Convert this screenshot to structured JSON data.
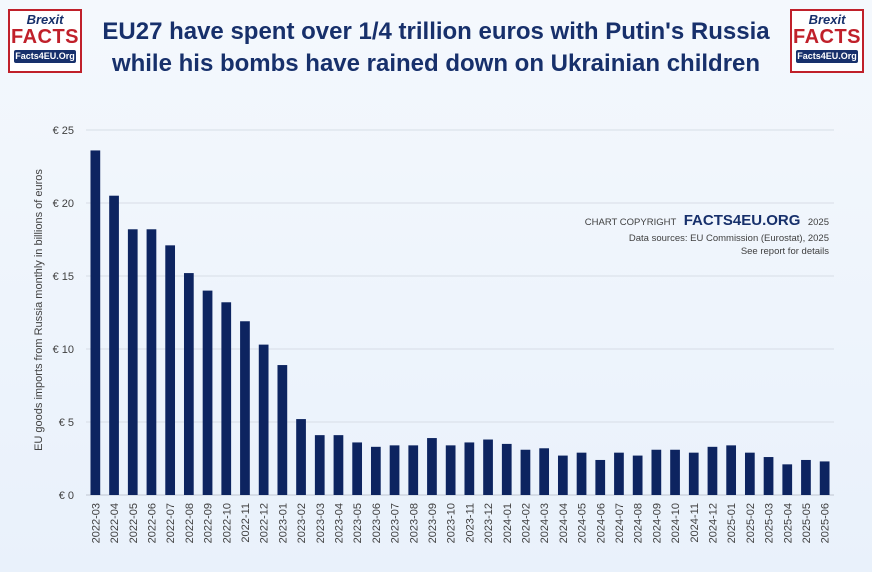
{
  "logo": {
    "line1": "Brexit",
    "line2": "FACTS",
    "line3": "Facts4EU.Org"
  },
  "title_line1": "EU27 have spent over 1/4 trillion euros with Putin's Russia",
  "title_line2": "while his bombs have rained down on Ukrainian children",
  "copyright": {
    "prefix": "CHART COPYRIGHT",
    "brand": "FACTS4EU.ORG",
    "year": "2025"
  },
  "source_line1": "Data sources: EU Commission (Eurostat), 2025",
  "source_line2": "See report for details",
  "colors": {
    "bar": "#0d2460",
    "grid": "#d7dde6",
    "text": "#404040",
    "title": "#17306b"
  },
  "chart_data": {
    "type": "bar",
    "ylabel": "EU goods imports from Russia monthly in billions of euros",
    "ylim": [
      0,
      25
    ],
    "yticks": [
      0,
      5,
      10,
      15,
      20,
      25
    ],
    "ytick_labels": [
      "€ 0",
      "€ 5",
      "€ 10",
      "€ 15",
      "€ 20",
      "€ 25"
    ],
    "grid": true,
    "categories": [
      "2022-03",
      "2022-04",
      "2022-05",
      "2022-06",
      "2022-07",
      "2022-08",
      "2022-09",
      "2022-10",
      "2022-11",
      "2022-12",
      "2023-01",
      "2023-02",
      "2023-03",
      "2023-04",
      "2023-05",
      "2023-06",
      "2023-07",
      "2023-08",
      "2023-09",
      "2023-10",
      "2023-11",
      "2023-12",
      "2024-01",
      "2024-02",
      "2024-03",
      "2024-04",
      "2024-05",
      "2024-06",
      "2024-07",
      "2024-08",
      "2024-09",
      "2024-10",
      "2024-11",
      "2024-12",
      "2025-01",
      "2025-02",
      "2025-03",
      "2025-04",
      "2025-05",
      "2025-06"
    ],
    "values": [
      23.6,
      20.5,
      18.2,
      18.2,
      17.1,
      15.2,
      14.0,
      13.2,
      11.9,
      10.3,
      8.9,
      5.2,
      4.1,
      4.1,
      3.6,
      3.3,
      3.4,
      3.4,
      3.9,
      3.4,
      3.6,
      3.8,
      3.5,
      3.1,
      3.2,
      2.7,
      2.9,
      2.4,
      2.9,
      2.7,
      3.1,
      3.1,
      2.9,
      3.3,
      3.4,
      2.9,
      2.6,
      2.1,
      2.4,
      2.3
    ]
  }
}
